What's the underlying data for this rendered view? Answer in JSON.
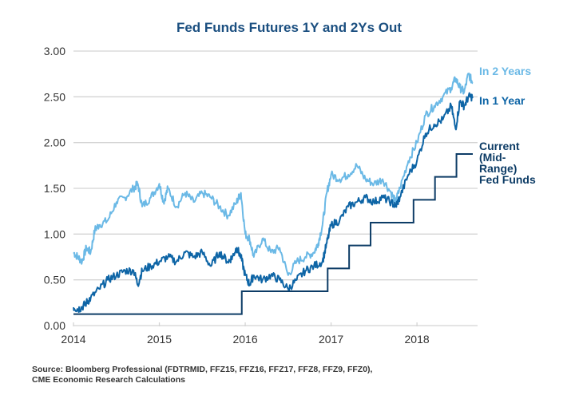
{
  "chart_data": {
    "type": "line",
    "title": "Fed Funds Futures 1Y and 2Ys Out",
    "xlabel": "",
    "ylabel": "",
    "xlim": [
      2014.0,
      2018.65
    ],
    "ylim": [
      0,
      3.0
    ],
    "grid": "horizontal",
    "x_ticks": [
      2014,
      2015,
      2016,
      2017,
      2018
    ],
    "x_tick_labels": [
      "2014",
      "2015",
      "2016",
      "2017",
      "2018"
    ],
    "y_ticks": [
      0,
      0.5,
      1.0,
      1.5,
      2.0,
      2.5,
      3.0
    ],
    "y_tick_labels": [
      "0.00",
      "0.50",
      "1.00",
      "1.50",
      "2.00",
      "2.50",
      "3.00"
    ],
    "legend_placement": "right (inline labels at series ends)",
    "series": [
      {
        "name": "In 2 Years",
        "color": "#6bb9e6",
        "x": [
          2014.0,
          2014.05,
          2014.1,
          2014.15,
          2014.2,
          2014.25,
          2014.3,
          2014.4,
          2014.5,
          2014.6,
          2014.7,
          2014.75,
          2014.8,
          2014.9,
          2015.0,
          2015.05,
          2015.1,
          2015.2,
          2015.3,
          2015.4,
          2015.5,
          2015.6,
          2015.7,
          2015.8,
          2015.9,
          2015.95,
          2016.0,
          2016.05,
          2016.1,
          2016.2,
          2016.3,
          2016.4,
          2016.5,
          2016.6,
          2016.7,
          2016.8,
          2016.85,
          2016.9,
          2016.95,
          2017.0,
          2017.1,
          2017.2,
          2017.3,
          2017.4,
          2017.5,
          2017.6,
          2017.7,
          2017.75,
          2017.8,
          2017.9,
          2018.0,
          2018.1,
          2018.2,
          2018.3,
          2018.4,
          2018.45,
          2018.5,
          2018.55,
          2018.6,
          2018.65
        ],
        "values": [
          0.8,
          0.75,
          0.7,
          0.85,
          0.8,
          1.05,
          1.1,
          1.15,
          1.35,
          1.4,
          1.5,
          1.55,
          1.3,
          1.4,
          1.55,
          1.35,
          1.5,
          1.3,
          1.45,
          1.35,
          1.45,
          1.4,
          1.3,
          1.2,
          1.35,
          1.45,
          1.0,
          0.95,
          0.75,
          0.95,
          0.8,
          0.85,
          0.55,
          0.7,
          0.75,
          0.8,
          0.9,
          1.1,
          1.45,
          1.65,
          1.6,
          1.65,
          1.75,
          1.6,
          1.55,
          1.6,
          1.45,
          1.35,
          1.5,
          1.8,
          2.0,
          2.3,
          2.4,
          2.5,
          2.6,
          2.7,
          2.6,
          2.55,
          2.75,
          2.65
        ]
      },
      {
        "name": "In 1 Year",
        "color": "#0e65a6",
        "x": [
          2014.0,
          2014.05,
          2014.1,
          2014.15,
          2014.2,
          2014.3,
          2014.4,
          2014.5,
          2014.6,
          2014.7,
          2014.75,
          2014.8,
          2014.9,
          2015.0,
          2015.1,
          2015.2,
          2015.3,
          2015.4,
          2015.5,
          2015.6,
          2015.7,
          2015.8,
          2015.85,
          2015.9,
          2015.95,
          2016.0,
          2016.05,
          2016.1,
          2016.2,
          2016.3,
          2016.4,
          2016.5,
          2016.6,
          2016.7,
          2016.8,
          2016.9,
          2016.95,
          2017.0,
          2017.1,
          2017.2,
          2017.3,
          2017.4,
          2017.5,
          2017.6,
          2017.7,
          2017.75,
          2017.8,
          2017.9,
          2018.0,
          2018.1,
          2018.2,
          2018.3,
          2018.4,
          2018.45,
          2018.5,
          2018.55,
          2018.6,
          2018.65
        ],
        "values": [
          0.2,
          0.18,
          0.2,
          0.25,
          0.3,
          0.4,
          0.5,
          0.55,
          0.6,
          0.6,
          0.45,
          0.6,
          0.65,
          0.7,
          0.75,
          0.7,
          0.8,
          0.75,
          0.8,
          0.65,
          0.8,
          0.7,
          0.75,
          0.85,
          0.75,
          0.55,
          0.45,
          0.55,
          0.5,
          0.55,
          0.5,
          0.4,
          0.5,
          0.6,
          0.65,
          0.7,
          0.9,
          1.1,
          1.15,
          1.3,
          1.35,
          1.4,
          1.35,
          1.4,
          1.35,
          1.3,
          1.4,
          1.65,
          1.8,
          2.1,
          2.2,
          2.25,
          2.4,
          2.15,
          2.45,
          2.4,
          2.5,
          2.5
        ]
      },
      {
        "name": "Current (Mid-Range) Fed Funds",
        "color": "#0d3c66",
        "step": true,
        "x": [
          2014.0,
          2015.96,
          2016.96,
          2017.21,
          2017.46,
          2017.96,
          2018.21,
          2018.46,
          2018.65
        ],
        "values": [
          0.125,
          0.375,
          0.625,
          0.875,
          1.125,
          1.375,
          1.625,
          1.875,
          1.875
        ]
      }
    ],
    "legend_labels": [
      {
        "series": "In 2 Years",
        "lines": [
          "In 2 Years"
        ]
      },
      {
        "series": "In 1 Year",
        "lines": [
          "In 1 Year"
        ]
      },
      {
        "series": "Current (Mid-Range) Fed Funds",
        "lines": [
          "Current",
          "(Mid-",
          "Range)",
          "Fed Funds"
        ]
      }
    ],
    "source_lines": [
      "Source: Bloomberg Professional (FDTRMID, FFZ15, FFZ16, FFZ17, FFZ8, FFZ9, FFZ0),",
      "CME Economic Research Calculations"
    ]
  }
}
